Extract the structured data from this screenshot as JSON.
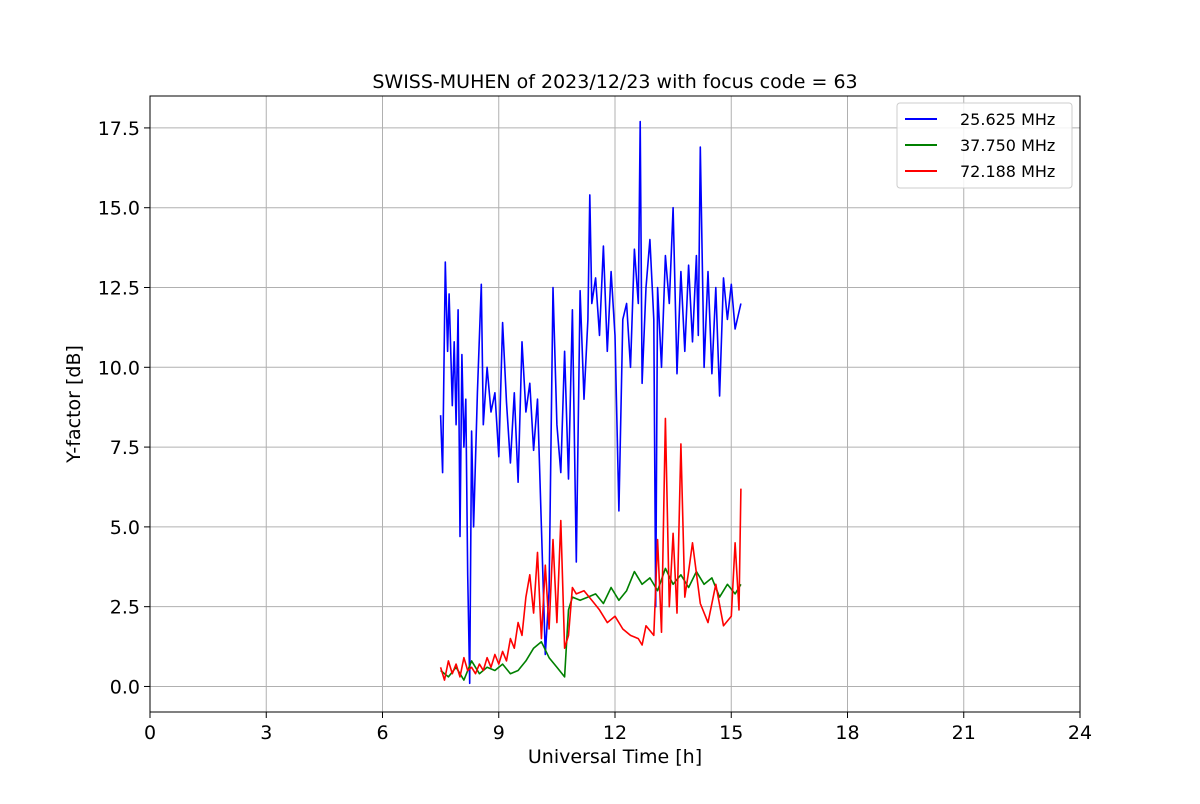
{
  "chart_data": {
    "type": "line",
    "title": "SWISS-MUHEN of 2023/12/23 with focus code = 63",
    "xlabel": "Universal Time [h]",
    "ylabel": "Y-factor [dB]",
    "xlim": [
      0,
      24
    ],
    "ylim": [
      -0.8,
      18.5
    ],
    "xticks": [
      0,
      3,
      6,
      9,
      12,
      15,
      18,
      21,
      24
    ],
    "xtick_labels": [
      "0",
      "3",
      "6",
      "9",
      "12",
      "15",
      "18",
      "21",
      "24"
    ],
    "yticks": [
      0,
      2.5,
      5,
      7.5,
      10,
      12.5,
      15,
      17.5
    ],
    "ytick_labels": [
      "0.0",
      "2.5",
      "5.0",
      "7.5",
      "10.0",
      "12.5",
      "15.0",
      "17.5"
    ],
    "grid": true,
    "legend_position": "top-right",
    "series": [
      {
        "name": "25.625 MHz",
        "color": "#0000ff",
        "x": [
          7.5,
          7.55,
          7.62,
          7.68,
          7.72,
          7.8,
          7.85,
          7.9,
          7.95,
          8.0,
          8.05,
          8.1,
          8.15,
          8.2,
          8.25,
          8.3,
          8.35,
          8.45,
          8.55,
          8.6,
          8.7,
          8.8,
          8.9,
          9.0,
          9.1,
          9.2,
          9.3,
          9.4,
          9.5,
          9.6,
          9.7,
          9.8,
          9.9,
          10.0,
          10.1,
          10.2,
          10.3,
          10.4,
          10.5,
          10.6,
          10.7,
          10.8,
          10.9,
          11.0,
          11.1,
          11.2,
          11.3,
          11.35,
          11.4,
          11.5,
          11.6,
          11.7,
          11.8,
          11.9,
          12.0,
          12.1,
          12.2,
          12.3,
          12.4,
          12.5,
          12.6,
          12.65,
          12.7,
          12.8,
          12.9,
          13.0,
          13.05,
          13.1,
          13.2,
          13.3,
          13.4,
          13.5,
          13.6,
          13.7,
          13.8,
          13.9,
          14.0,
          14.1,
          14.15,
          14.2,
          14.3,
          14.4,
          14.5,
          14.6,
          14.7,
          14.8,
          14.9,
          15.0,
          15.1,
          15.25
        ],
        "values": [
          8.5,
          6.7,
          13.3,
          10.5,
          12.3,
          8.8,
          10.8,
          8.2,
          11.8,
          4.7,
          10.4,
          7.5,
          9.0,
          3.5,
          0.1,
          8.0,
          5.0,
          9.2,
          12.6,
          8.2,
          10.0,
          8.6,
          9.2,
          7.2,
          11.4,
          8.9,
          7.0,
          9.2,
          6.4,
          10.8,
          8.6,
          9.5,
          7.4,
          9.0,
          5.0,
          1.0,
          3.0,
          12.5,
          8.2,
          6.7,
          10.5,
          6.5,
          11.8,
          3.9,
          12.4,
          9.0,
          11.5,
          15.4,
          12.0,
          12.8,
          11.0,
          13.8,
          10.5,
          13.0,
          11.0,
          5.5,
          11.5,
          12.0,
          10.0,
          13.7,
          12.0,
          17.7,
          9.5,
          12.5,
          14.0,
          11.5,
          2.5,
          12.5,
          10.0,
          13.5,
          12.0,
          15.0,
          9.8,
          13.0,
          10.5,
          13.2,
          10.8,
          13.5,
          11.0,
          16.9,
          10.0,
          13.0,
          9.8,
          12.5,
          9.1,
          12.8,
          11.5,
          12.6,
          11.2,
          12.0
        ]
      },
      {
        "name": "37.750 MHz",
        "color": "#008000",
        "x": [
          7.5,
          7.7,
          7.9,
          8.1,
          8.3,
          8.5,
          8.7,
          8.9,
          9.1,
          9.3,
          9.5,
          9.7,
          9.9,
          10.1,
          10.3,
          10.5,
          10.7,
          10.8,
          10.9,
          11.1,
          11.3,
          11.5,
          11.7,
          11.9,
          12.1,
          12.3,
          12.5,
          12.7,
          12.9,
          13.1,
          13.3,
          13.5,
          13.7,
          13.9,
          14.1,
          14.3,
          14.5,
          14.7,
          14.9,
          15.1,
          15.25
        ],
        "values": [
          0.5,
          0.3,
          0.6,
          0.2,
          0.8,
          0.4,
          0.6,
          0.5,
          0.7,
          0.4,
          0.5,
          0.8,
          1.2,
          1.4,
          0.9,
          0.6,
          0.3,
          2.4,
          2.8,
          2.7,
          2.8,
          2.9,
          2.6,
          3.1,
          2.7,
          3.0,
          3.6,
          3.2,
          3.4,
          3.0,
          3.7,
          3.2,
          3.5,
          3.1,
          3.6,
          3.2,
          3.4,
          2.8,
          3.2,
          2.9,
          3.2
        ]
      },
      {
        "name": "72.188 MHz",
        "color": "#ff0000",
        "x": [
          7.5,
          7.6,
          7.7,
          7.8,
          7.9,
          8.0,
          8.1,
          8.2,
          8.3,
          8.4,
          8.5,
          8.6,
          8.7,
          8.8,
          8.9,
          9.0,
          9.1,
          9.2,
          9.3,
          9.4,
          9.5,
          9.6,
          9.7,
          9.8,
          9.9,
          10.0,
          10.1,
          10.2,
          10.3,
          10.4,
          10.5,
          10.6,
          10.7,
          10.8,
          10.9,
          11.0,
          11.2,
          11.4,
          11.6,
          11.8,
          12.0,
          12.2,
          12.4,
          12.6,
          12.7,
          12.8,
          13.0,
          13.1,
          13.2,
          13.3,
          13.4,
          13.5,
          13.6,
          13.7,
          13.8,
          13.9,
          14.0,
          14.2,
          14.4,
          14.6,
          14.8,
          15.0,
          15.1,
          15.2,
          15.25
        ],
        "values": [
          0.6,
          0.2,
          0.8,
          0.4,
          0.7,
          0.3,
          0.9,
          0.5,
          0.6,
          0.4,
          0.7,
          0.5,
          0.9,
          0.6,
          1.0,
          0.7,
          1.1,
          0.8,
          1.5,
          1.2,
          2.0,
          1.6,
          2.8,
          3.5,
          2.3,
          4.2,
          1.5,
          3.8,
          1.8,
          4.6,
          2.0,
          5.2,
          1.2,
          1.6,
          3.1,
          2.9,
          3.0,
          2.7,
          2.4,
          2.0,
          2.2,
          1.8,
          1.6,
          1.5,
          1.3,
          1.9,
          1.6,
          4.6,
          1.7,
          8.4,
          2.5,
          4.8,
          2.3,
          7.6,
          2.8,
          3.6,
          4.5,
          2.6,
          2.0,
          3.2,
          1.9,
          2.2,
          4.5,
          2.4,
          6.2
        ]
      }
    ]
  }
}
